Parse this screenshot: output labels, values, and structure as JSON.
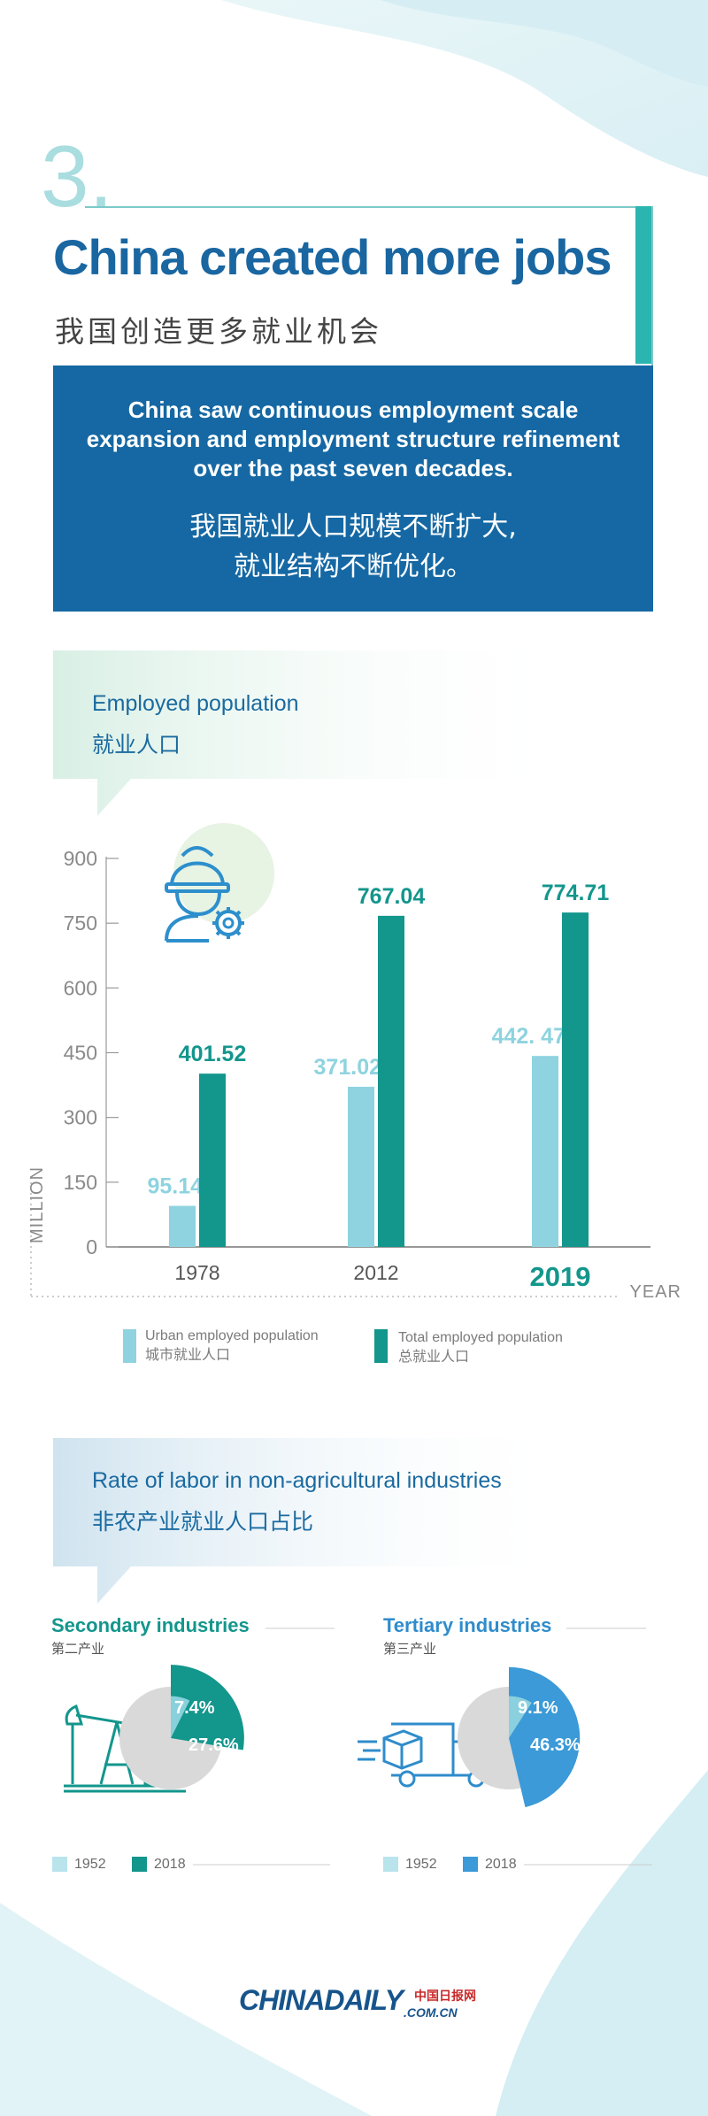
{
  "colors": {
    "brand_blue": "#1568a3",
    "teal": "#13968c",
    "light_blue_bar": "#8ed3df",
    "sky_blue": "#3b9ad7",
    "pie_gray": "#d9d9d9"
  },
  "header": {
    "section_number": "3.",
    "title_en": "China created more jobs",
    "title_zh": "我国创造更多就业机会"
  },
  "summary": {
    "text_en": "China saw continuous employment scale expansion and employment structure refinement over the past seven decades.",
    "text_zh_line1": "我国就业人口规模不断扩大,",
    "text_zh_line2": "就业结构不断优化。"
  },
  "employment_section": {
    "label_en": "Employed population",
    "label_zh": "就业人口",
    "icon": "worker-with-gear-icon",
    "y_axis_name": "MILLION",
    "x_axis_name": "YEAR",
    "legend": [
      {
        "en": "Urban employed population",
        "zh": "城市就业人口",
        "color": "#8ed3df"
      },
      {
        "en": "Total employed population",
        "zh": "总就业人口",
        "color": "#13968c"
      }
    ]
  },
  "labor_section": {
    "label_en": "Rate of labor in non-agricultural industries",
    "label_zh": "非农产业就业人口占比",
    "secondary": {
      "title_en": "Secondary industries",
      "title_zh": "第二产业",
      "icon": "oil-pump-jack-icon",
      "legend_1952": "1952",
      "legend_2018": "2018"
    },
    "tertiary": {
      "title_en": "Tertiary industries",
      "title_zh": "第三产业",
      "icon": "delivery-truck-icon",
      "legend_1952": "1952",
      "legend_2018": "2018"
    }
  },
  "footer": {
    "logo_main": "CHINADAILY",
    "logo_sub": ".COM.CN",
    "logo_zh": "中国日报网"
  },
  "chart_data": [
    {
      "type": "bar",
      "title": "Employed population",
      "categories": [
        "1978",
        "2012",
        "2019"
      ],
      "highlight_category": "2019",
      "series": [
        {
          "name": "Urban employed population",
          "values": [
            95.14,
            371.02,
            442.47
          ],
          "labels": [
            "95.14",
            "371.02",
            "442. 47"
          ],
          "color": "#8ed3df"
        },
        {
          "name": "Total employed population",
          "values": [
            401.52,
            767.04,
            774.71
          ],
          "labels": [
            "401.52",
            "767.04",
            "774.71"
          ],
          "color": "#13968c"
        }
      ],
      "xlabel": "YEAR",
      "ylabel": "MILLION",
      "ylim": [
        0,
        900
      ],
      "yticks": [
        0,
        150,
        300,
        450,
        600,
        750,
        900
      ],
      "grid": false
    },
    {
      "type": "pie",
      "title": "Secondary industries",
      "series": [
        {
          "name": "1952",
          "value": 7.4,
          "label": "7.4%",
          "color": "#8ed3df"
        },
        {
          "name": "2018",
          "value": 27.6,
          "label": "27.6%",
          "color": "#13968c"
        }
      ]
    },
    {
      "type": "pie",
      "title": "Tertiary industries",
      "series": [
        {
          "name": "1952",
          "value": 9.1,
          "label": "9.1%",
          "color": "#8ed3df"
        },
        {
          "name": "2018",
          "value": 46.3,
          "label": "46.3%",
          "color": "#3b9ad7"
        }
      ]
    }
  ]
}
